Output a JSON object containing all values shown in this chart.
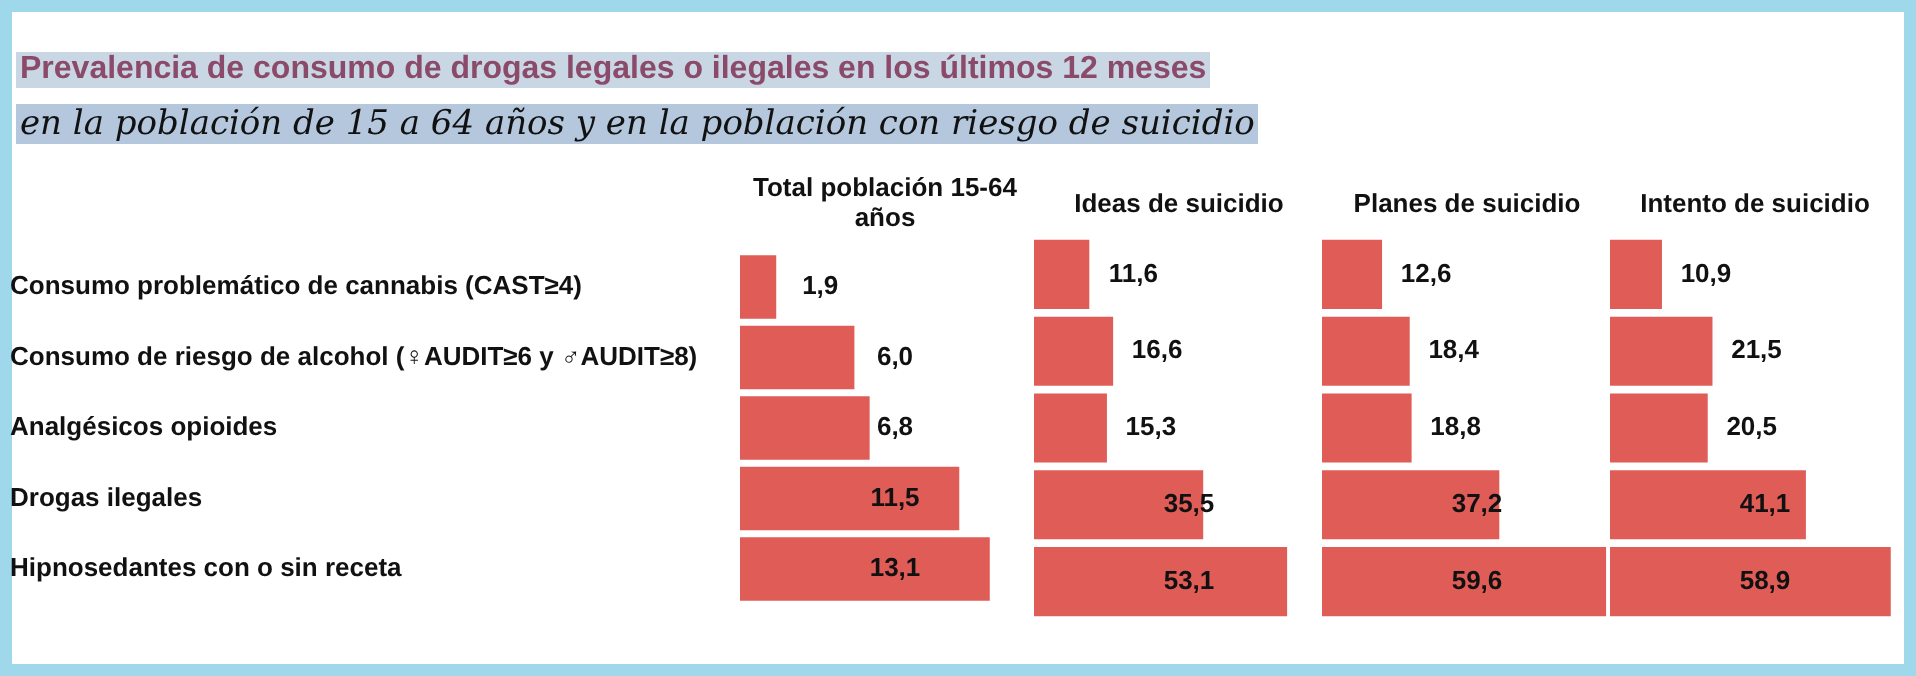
{
  "chart_data": [
    {
      "type": "bar",
      "orientation": "horizontal",
      "title": "Prevalencia de consumo de drogas legales o ilegales en los últimos 12 meses",
      "subtitle": "en la población de 15 a 64 años y en la población con riesgo de suicidio",
      "xlabel": "Total población 15-64 años",
      "categories": [
        "Consumo problemático de cannabis (CAST≥4)",
        "Consumo de riesgo de alcohol (♀AUDIT≥6 y ♂AUDIT≥8)",
        "Analgésicos opioides",
        "Drogas ilegales",
        "Hipnosedantes con o sin receta"
      ],
      "values": [
        1.9,
        6.0,
        6.8,
        11.5,
        13.1
      ],
      "value_labels": [
        "1,9",
        "6,0",
        "6,8",
        "11,5",
        "13,1"
      ],
      "color": "#e05c57",
      "tick_labels": "y"
    },
    {
      "type": "bar",
      "orientation": "horizontal",
      "xlabel": "Ideas de suicidio",
      "categories": [
        null,
        null,
        null,
        null,
        null
      ],
      "values": [
        11.6,
        16.6,
        15.3,
        35.5,
        53.1
      ],
      "value_labels": [
        "11,6",
        "16,6",
        "15,3",
        "35,5",
        "53,1"
      ],
      "color": "#e05c57",
      "tick_labels": false
    },
    {
      "type": "bar",
      "orientation": "horizontal",
      "xlabel": "Planes de suicidio",
      "categories": [
        null,
        null,
        null,
        null,
        null
      ],
      "values": [
        12.6,
        18.4,
        18.8,
        37.2,
        59.6
      ],
      "value_labels": [
        "12,6",
        "18,4",
        "18,8",
        "37,2",
        "59,6"
      ],
      "color": "#e05c57",
      "tick_labels": false
    },
    {
      "type": "bar",
      "orientation": "horizontal",
      "xlabel": "Intento de suicidio",
      "categories": [
        null,
        null,
        null,
        null,
        null
      ],
      "values": [
        10.9,
        21.5,
        20.5,
        41.1,
        58.9
      ],
      "value_labels": [
        "10,9",
        "21,5",
        "20,5",
        "41,1",
        "58,9"
      ],
      "color": "#e05c57",
      "tick_labels": false
    }
  ]
}
